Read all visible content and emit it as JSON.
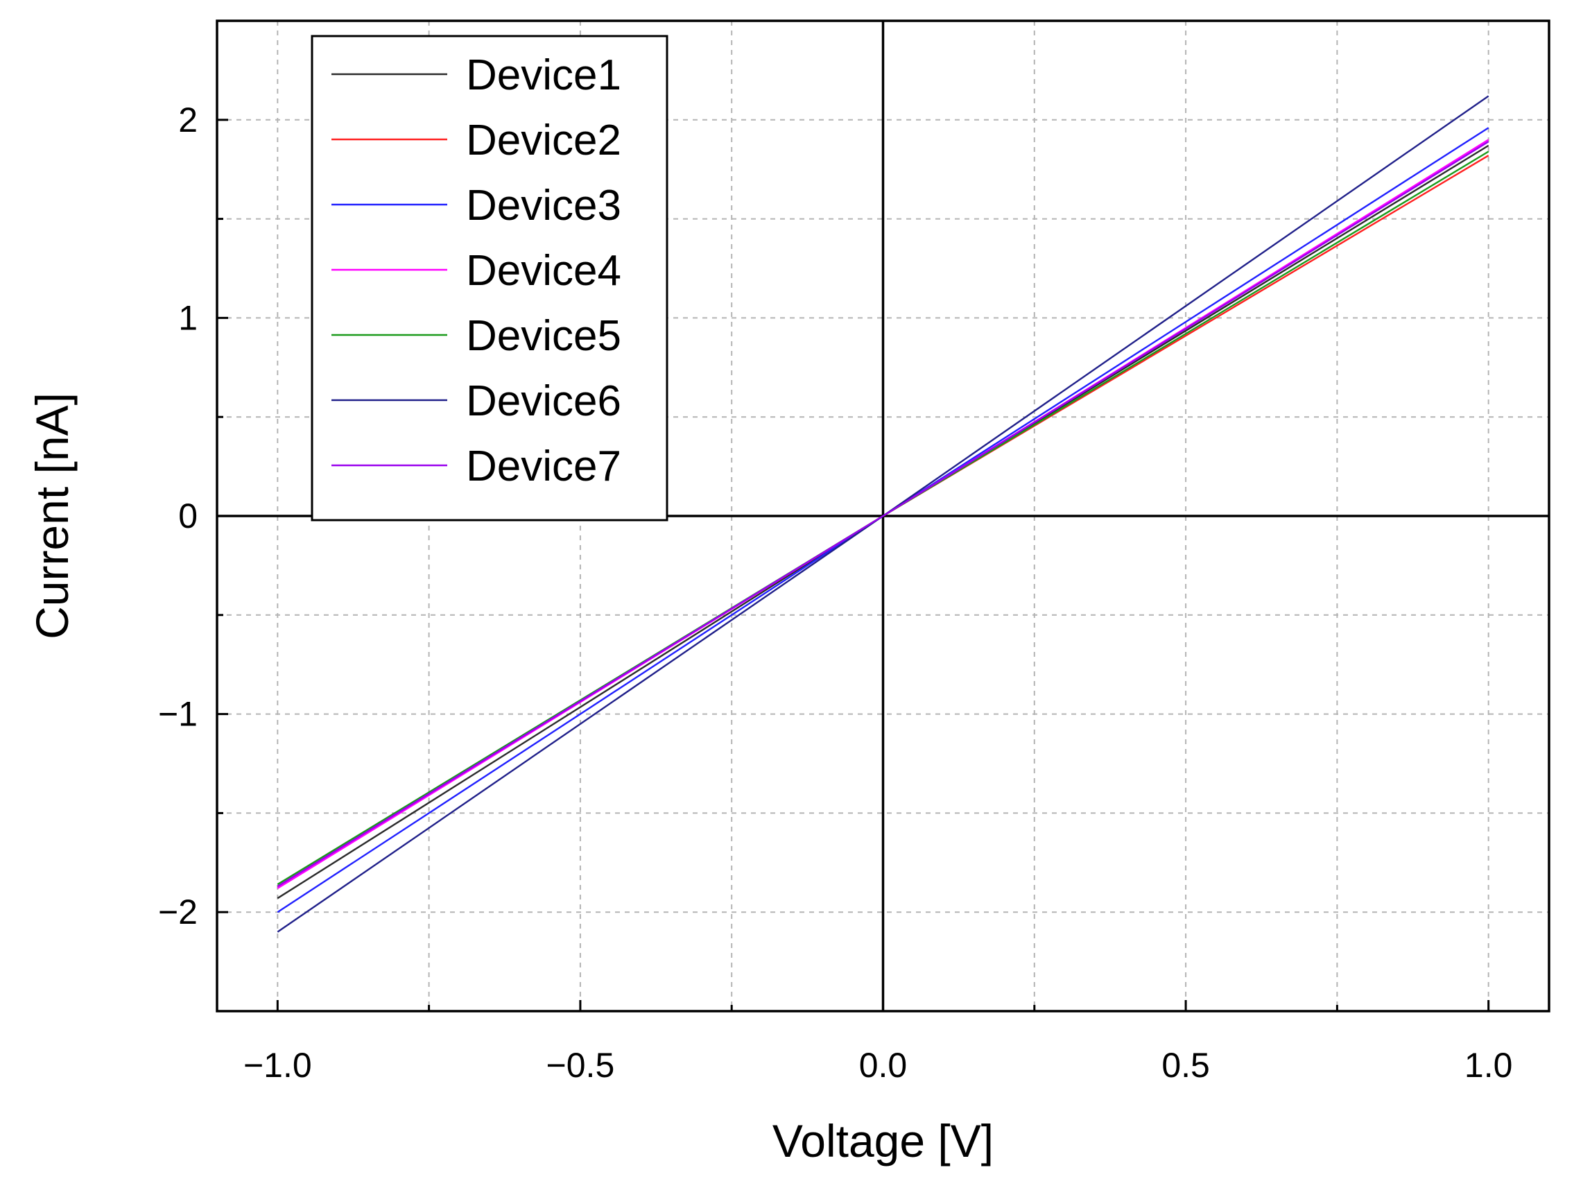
{
  "chart_data": {
    "type": "line",
    "xlabel": "Voltage [V]",
    "ylabel": "Current [nA]",
    "xlim": [
      -1.1,
      1.1
    ],
    "ylim": [
      -2.5,
      2.5
    ],
    "x_ticks": [
      -1.0,
      -0.5,
      0.0,
      0.5,
      1.0
    ],
    "x_tick_labels": [
      "−1.0",
      "−0.5",
      "0.0",
      "0.5",
      "1.0"
    ],
    "y_ticks": [
      -2,
      -1,
      0,
      1,
      2
    ],
    "y_tick_labels": [
      "−2",
      "−1",
      "0",
      "1",
      "2"
    ],
    "grid": true,
    "legend_position": "top-left",
    "x": [
      -1.0,
      0.0,
      1.0
    ],
    "series": [
      {
        "name": "Device1",
        "color": "#2b2b2b",
        "values": [
          -1.93,
          0.0,
          1.87
        ]
      },
      {
        "name": "Device2",
        "color": "#ff2020",
        "values": [
          -1.87,
          0.0,
          1.82
        ]
      },
      {
        "name": "Device3",
        "color": "#2020ff",
        "values": [
          -2.0,
          0.0,
          1.96
        ]
      },
      {
        "name": "Device4",
        "color": "#ff00ff",
        "values": [
          -1.88,
          0.0,
          1.9
        ]
      },
      {
        "name": "Device5",
        "color": "#1a9a1a",
        "values": [
          -1.86,
          0.0,
          1.84
        ]
      },
      {
        "name": "Device6",
        "color": "#20208a",
        "values": [
          -2.1,
          0.0,
          2.12
        ]
      },
      {
        "name": "Device7",
        "color": "#9900ee",
        "values": [
          -1.87,
          0.0,
          1.89
        ]
      }
    ]
  }
}
